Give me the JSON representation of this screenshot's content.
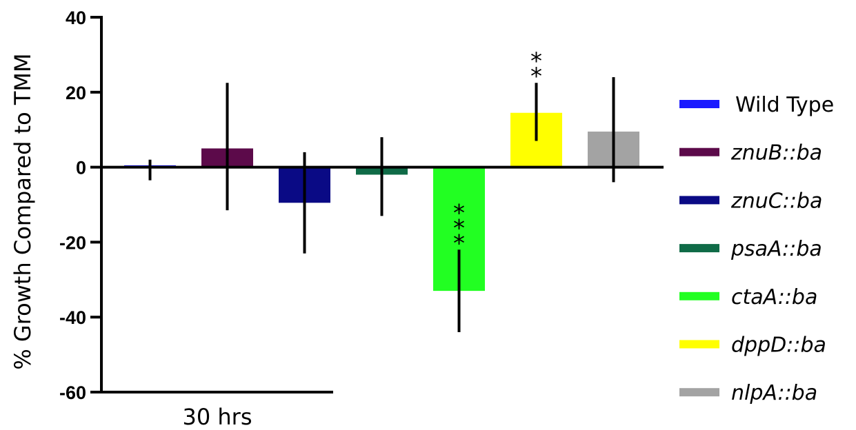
{
  "chart_data": {
    "type": "bar",
    "title": "",
    "xlabel": "30 hrs",
    "ylabel": "% Growth Compared to  TMM",
    "ylim": [
      -60,
      40
    ],
    "yticks": [
      40,
      20,
      0,
      -20,
      -40,
      -60
    ],
    "ytick_labels": [
      "40",
      "20",
      "0",
      "-20",
      "-40",
      "-60"
    ],
    "grid": false,
    "legend_position": "right",
    "categories": [
      "30 hrs"
    ],
    "series": [
      {
        "name": "Wild Type",
        "value": 0.5,
        "err_low": -3.5,
        "err_high": 2,
        "color": "#1a1aff",
        "italic": false,
        "annotation": ""
      },
      {
        "name": "znuB::ba",
        "value": 5,
        "err_low": -11.5,
        "err_high": 22.5,
        "color": "#5c0a4a",
        "italic": true,
        "annotation": ""
      },
      {
        "name": "znuC::ba",
        "value": -9.5,
        "err_low": -23,
        "err_high": 4,
        "color": "#0a0a85",
        "italic": true,
        "annotation": ""
      },
      {
        "name": "psaA::ba",
        "value": -2,
        "err_low": -13,
        "err_high": 8,
        "color": "#0f6b47",
        "italic": true,
        "annotation": ""
      },
      {
        "name": "ctaA::ba",
        "value": -33,
        "err_low": -44,
        "err_high": -22,
        "color": "#22ff22",
        "italic": true,
        "annotation": "***"
      },
      {
        "name": "dppD::ba",
        "value": 14.5,
        "err_low": 7,
        "err_high": 22.5,
        "color": "#ffff00",
        "italic": true,
        "annotation": "**"
      },
      {
        "name": "nlpA::ba",
        "value": 9.5,
        "err_low": -4,
        "err_high": 24,
        "color": "#a3a3a3",
        "italic": true,
        "annotation": ""
      }
    ]
  }
}
